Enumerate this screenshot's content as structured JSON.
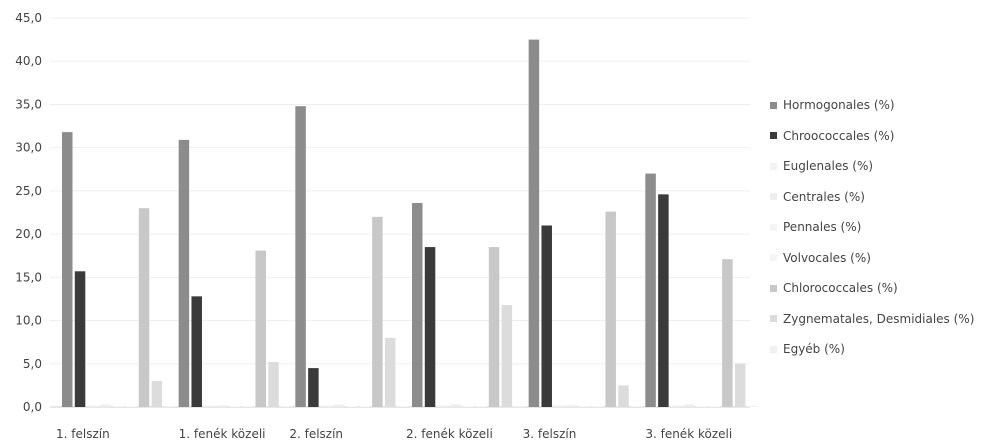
{
  "chart_data": {
    "type": "bar",
    "title": "",
    "xlabel": "",
    "ylabel": "",
    "ylim": [
      0,
      45
    ],
    "yticks": [
      "0,0",
      "5,0",
      "10,0",
      "15,0",
      "20,0",
      "25,0",
      "30,0",
      "35,0",
      "40,0",
      "45,0"
    ],
    "grid": true,
    "legend_position": "right",
    "categories": [
      "1. felszín",
      "1. fenék közeli",
      "2. felszín",
      "2. fenék közeli",
      "3. felszín",
      "3. fenék közeli"
    ],
    "series": [
      {
        "name": "Hormogonales (%)",
        "color": "#8c8c8c",
        "values": [
          31.8,
          30.9,
          34.8,
          23.6,
          42.5,
          27.0
        ]
      },
      {
        "name": "Chroococcales (%)",
        "color": "#3a3a3a",
        "values": [
          15.7,
          12.8,
          4.5,
          18.5,
          21.0,
          24.6
        ]
      },
      {
        "name": "Euglenales (%)",
        "color": "#f2f2f2",
        "values": [
          0.2,
          0.2,
          0.2,
          0.2,
          0.2,
          0.2
        ]
      },
      {
        "name": "Centrales (%)",
        "color": "#eeeeee",
        "values": [
          0.3,
          0.2,
          0.3,
          0.3,
          0.2,
          0.3
        ]
      },
      {
        "name": "Pennales (%)",
        "color": "#f4f4f4",
        "values": [
          0.1,
          0.1,
          0.1,
          0.1,
          0.1,
          0.1
        ]
      },
      {
        "name": "Volvocales (%)",
        "color": "#f6f6f6",
        "values": [
          0.1,
          0.1,
          0.1,
          0.1,
          0.1,
          0.1
        ]
      },
      {
        "name": "Chlorococcales (%)",
        "color": "#c8c8c8",
        "values": [
          23.0,
          18.1,
          22.0,
          18.5,
          22.6,
          17.1
        ]
      },
      {
        "name": "Zygnematales, Desmidiales (%)",
        "color": "#dcdcdc",
        "values": [
          3.0,
          5.2,
          8.0,
          11.8,
          2.5,
          5.0
        ]
      },
      {
        "name": "Egyéb (%)",
        "color": "#f0f0f0",
        "values": [
          0.1,
          0.1,
          0.1,
          0.1,
          0.1,
          0.1
        ]
      }
    ]
  }
}
